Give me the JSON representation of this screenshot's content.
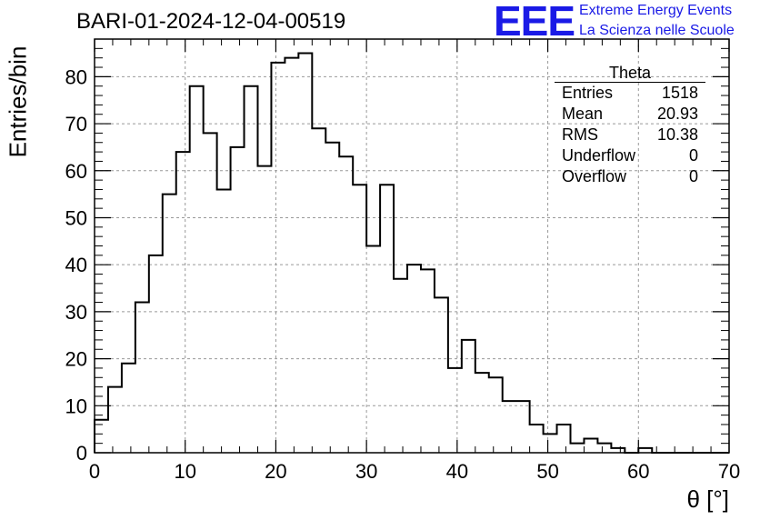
{
  "title": "BARI-01-2024-12-04-00519",
  "logo": {
    "mark": "EEE",
    "line1": "Extreme Energy Events",
    "line2": "La Scienza nelle Scuole",
    "color": "#1a1ae6"
  },
  "stats": {
    "title": "Theta",
    "rows": [
      {
        "label": "Entries",
        "value": "1518"
      },
      {
        "label": "Mean",
        "value": "20.93"
      },
      {
        "label": "RMS",
        "value": "10.38"
      },
      {
        "label": "Underflow",
        "value": "0"
      },
      {
        "label": "Overflow",
        "value": "0"
      }
    ]
  },
  "chart_data": {
    "type": "histogram",
    "title": "BARI-01-2024-12-04-00519",
    "xlabel": "θ [°]",
    "ylabel": "Entries/bin",
    "xlim": [
      0,
      70
    ],
    "ylim": [
      0,
      88
    ],
    "bin_width": 1.5,
    "x_ticks": [
      0,
      10,
      20,
      30,
      40,
      50,
      60,
      70
    ],
    "y_ticks": [
      0,
      10,
      20,
      30,
      40,
      50,
      60,
      70,
      80
    ],
    "grid": true,
    "line_color": "#000000",
    "values": [
      7,
      14,
      19,
      32,
      42,
      55,
      64,
      78,
      68,
      56,
      65,
      78,
      61,
      83,
      84,
      85,
      69,
      66,
      63,
      57,
      44,
      57,
      37,
      40,
      39,
      33,
      18,
      24,
      17,
      16,
      11,
      11,
      6,
      4,
      6,
      2,
      3,
      2,
      1,
      0,
      1,
      0,
      0,
      0,
      0,
      0,
      0
    ]
  }
}
